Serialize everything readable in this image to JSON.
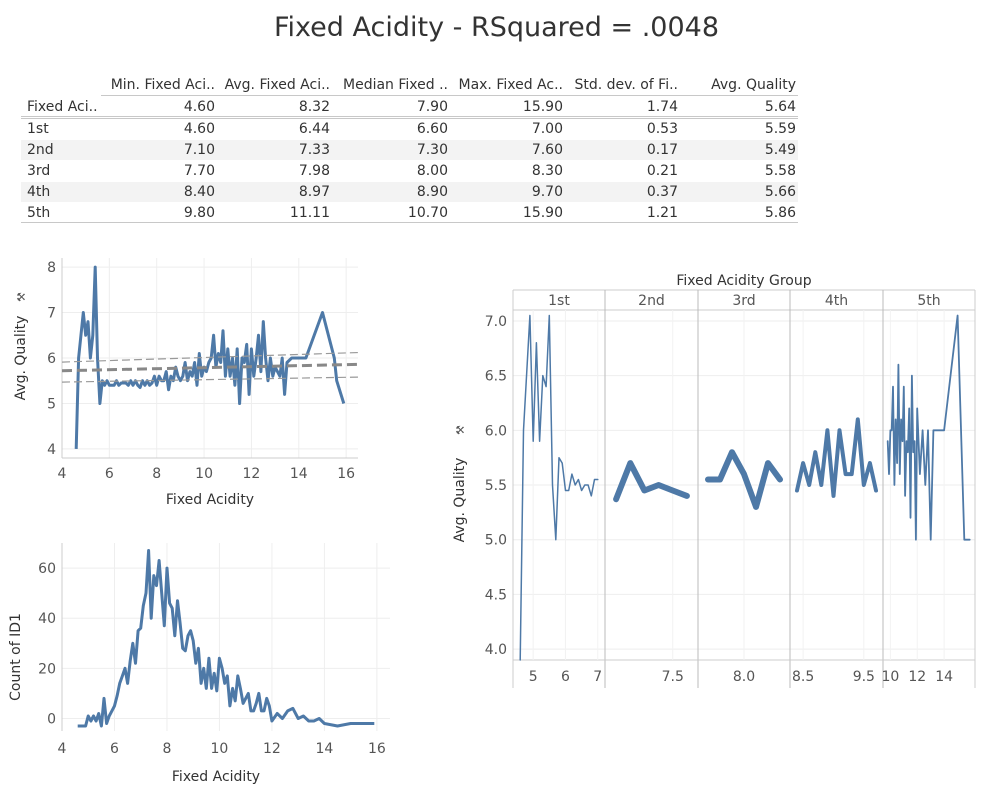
{
  "title": "Fixed Acidity  - RSquared = .0048",
  "table": {
    "columns": [
      "Min. Fixed Aci..",
      "Avg. Fixed Aci..",
      "Median Fixed ..",
      "Max. Fixed Ac..",
      "Std. dev. of Fi..",
      "Avg. Quality"
    ],
    "total_label": "Fixed Aci..",
    "total": [
      "4.60",
      "8.32",
      "7.90",
      "15.90",
      "1.74",
      "5.64"
    ],
    "rows": [
      {
        "label": "1st",
        "values": [
          "4.60",
          "6.44",
          "6.60",
          "7.00",
          "0.53",
          "5.59"
        ]
      },
      {
        "label": "2nd",
        "values": [
          "7.10",
          "7.33",
          "7.30",
          "7.60",
          "0.17",
          "5.49"
        ]
      },
      {
        "label": "3rd",
        "values": [
          "7.70",
          "7.98",
          "8.00",
          "8.30",
          "0.21",
          "5.58"
        ]
      },
      {
        "label": "4th",
        "values": [
          "8.40",
          "8.97",
          "8.90",
          "9.70",
          "0.37",
          "5.66"
        ]
      },
      {
        "label": "5th",
        "values": [
          "9.80",
          "11.11",
          "10.70",
          "15.90",
          "1.21",
          "5.86"
        ]
      }
    ]
  },
  "chart_data": [
    {
      "type": "line",
      "name": "quality-vs-acidity",
      "xlabel": "Fixed Acidity",
      "ylabel": "Avg. Quality",
      "xlim": [
        4,
        16.5
      ],
      "ylim": [
        3.8,
        8.2
      ],
      "xticks": [
        4,
        6,
        8,
        10,
        12,
        14,
        16
      ],
      "yticks": [
        4,
        5,
        6,
        7,
        8
      ],
      "trend": {
        "x": [
          4.6,
          15.9
        ],
        "y": [
          5.72,
          5.86
        ]
      },
      "conf_band": {
        "upper": [
          5.94,
          6.12
        ],
        "lower": [
          5.52,
          5.58
        ]
      },
      "color": "#4e79a7",
      "series": [
        {
          "x": [
            4.6,
            4.7,
            4.9,
            5.0,
            5.1,
            5.2,
            5.3,
            5.4,
            5.5,
            5.6,
            5.7,
            5.8,
            5.9,
            6.0,
            6.1,
            6.2,
            6.3,
            6.4,
            6.5,
            6.6,
            6.7,
            6.8,
            6.9,
            7.0,
            7.1,
            7.2,
            7.3,
            7.4,
            7.5,
            7.6,
            7.7,
            7.8,
            7.9,
            8.0,
            8.1,
            8.2,
            8.3,
            8.4,
            8.5,
            8.6,
            8.7,
            8.8,
            8.9,
            9.0,
            9.1,
            9.2,
            9.3,
            9.4,
            9.5,
            9.6,
            9.7,
            9.8,
            9.9,
            10.0,
            10.1,
            10.2,
            10.3,
            10.4,
            10.5,
            10.6,
            10.7,
            10.8,
            10.9,
            11.0,
            11.1,
            11.2,
            11.3,
            11.4,
            11.5,
            11.6,
            11.7,
            11.8,
            11.9,
            12.0,
            12.1,
            12.2,
            12.3,
            12.4,
            12.5,
            12.6,
            12.7,
            12.8,
            12.9,
            13.0,
            13.2,
            13.3,
            13.4,
            13.5,
            13.7,
            14.0,
            14.3,
            15.0,
            15.5,
            15.6,
            15.9
          ],
          "y": [
            4.0,
            6.0,
            7.0,
            6.5,
            6.8,
            6.0,
            6.5,
            8.0,
            6.0,
            5.0,
            5.5,
            5.4,
            5.5,
            5.4,
            5.4,
            5.4,
            5.5,
            5.4,
            5.45,
            5.45,
            5.45,
            5.4,
            5.5,
            5.4,
            5.5,
            5.4,
            5.35,
            5.5,
            5.4,
            5.5,
            5.4,
            5.45,
            5.6,
            5.4,
            5.6,
            5.5,
            5.5,
            5.7,
            5.3,
            5.6,
            5.5,
            5.8,
            5.6,
            5.5,
            5.6,
            5.9,
            5.5,
            5.7,
            5.6,
            5.9,
            5.4,
            6.1,
            5.6,
            5.8,
            5.7,
            5.9,
            6.0,
            6.5,
            5.8,
            6.1,
            5.9,
            6.6,
            5.6,
            6.2,
            5.6,
            6.0,
            5.4,
            6.2,
            5.0,
            6.0,
            5.9,
            6.3,
            5.2,
            6.2,
            5.6,
            6.0,
            6.5,
            5.7,
            6.8,
            6.0,
            5.5,
            6.0,
            5.6,
            5.8,
            5.6,
            6.0,
            5.2,
            5.9,
            6.0,
            6.0,
            6.0,
            7.0,
            6.0,
            5.5,
            5.0
          ]
        }
      ]
    },
    {
      "type": "line",
      "name": "count-vs-acidity",
      "xlabel": "Fixed Acidity",
      "ylabel": "Count of ID1",
      "xlim": [
        4,
        16.5
      ],
      "ylim": [
        -5,
        70
      ],
      "xticks": [
        4,
        6,
        8,
        10,
        12,
        14,
        16
      ],
      "yticks": [
        0,
        20,
        40,
        60
      ],
      "color": "#4e79a7",
      "series": [
        {
          "x": [
            4.6,
            4.7,
            4.9,
            5.0,
            5.1,
            5.2,
            5.3,
            5.4,
            5.5,
            5.6,
            5.7,
            5.8,
            5.9,
            6.0,
            6.1,
            6.2,
            6.3,
            6.4,
            6.5,
            6.6,
            6.7,
            6.8,
            6.9,
            7.0,
            7.1,
            7.2,
            7.3,
            7.4,
            7.5,
            7.6,
            7.7,
            7.8,
            7.9,
            8.0,
            8.1,
            8.2,
            8.3,
            8.4,
            8.5,
            8.6,
            8.7,
            8.8,
            8.9,
            9.0,
            9.1,
            9.2,
            9.3,
            9.4,
            9.5,
            9.6,
            9.7,
            9.8,
            9.9,
            10.0,
            10.1,
            10.2,
            10.3,
            10.4,
            10.5,
            10.6,
            10.7,
            10.8,
            10.9,
            11.0,
            11.1,
            11.2,
            11.3,
            11.4,
            11.5,
            11.6,
            11.7,
            11.8,
            11.9,
            12.0,
            12.2,
            12.4,
            12.6,
            12.8,
            13.0,
            13.2,
            13.4,
            13.6,
            13.8,
            14.0,
            14.5,
            15.0,
            15.5,
            15.9
          ],
          "y": [
            -3,
            -3,
            -3,
            1,
            -1,
            1,
            -1,
            2,
            -3,
            8,
            -2,
            1,
            3,
            5,
            9,
            14,
            17,
            20,
            14,
            23,
            30,
            22,
            35,
            36,
            45,
            50,
            67,
            40,
            57,
            53,
            63,
            50,
            37,
            60,
            46,
            44,
            33,
            47,
            38,
            28,
            27,
            33,
            35,
            31,
            22,
            28,
            14,
            20,
            12,
            24,
            12,
            18,
            11,
            24,
            20,
            14,
            17,
            5,
            12,
            7,
            17,
            12,
            6,
            8,
            10,
            3,
            3,
            6,
            10,
            3,
            3,
            8,
            5,
            -1,
            2,
            0,
            3,
            4,
            0,
            1,
            -1,
            -1,
            0,
            -2,
            -3,
            -2,
            -2,
            -2
          ]
        }
      ]
    },
    {
      "type": "line",
      "name": "quality-by-group",
      "title": "Fixed Acidity Group",
      "ylabel": "Avg. Quality",
      "ylim": [
        3.9,
        7.1
      ],
      "yticks": [
        4.0,
        4.5,
        5.0,
        5.5,
        6.0,
        6.5,
        7.0
      ],
      "color": "#4e79a7",
      "panels": [
        {
          "label": "1st",
          "xlim": [
            4.5,
            7.1
          ],
          "xticks": [
            5,
            6,
            7
          ],
          "x_tick_labels": [
            "5",
            "6",
            "7"
          ],
          "width": 1.5,
          "x": [
            4.6,
            4.7,
            4.9,
            5.0,
            5.1,
            5.2,
            5.3,
            5.4,
            5.5,
            5.6,
            5.7,
            5.8,
            5.9,
            6.0,
            6.1,
            6.2,
            6.3,
            6.4,
            6.5,
            6.6,
            6.7,
            6.8,
            6.9,
            7.0
          ],
          "y": [
            3.9,
            6.0,
            7.05,
            5.9,
            6.8,
            5.9,
            6.5,
            6.4,
            7.05,
            5.5,
            5.0,
            5.75,
            5.7,
            5.45,
            5.45,
            5.6,
            5.5,
            5.55,
            5.45,
            5.5,
            5.5,
            5.4,
            5.55,
            5.55
          ]
        },
        {
          "label": "2nd",
          "xlim": [
            7.05,
            7.65
          ],
          "xticks": [
            7.5
          ],
          "x_tick_labels": [
            "7.5"
          ],
          "width": 6,
          "x": [
            7.1,
            7.2,
            7.3,
            7.4,
            7.5,
            7.6
          ],
          "y": [
            5.37,
            5.7,
            5.45,
            5.5,
            5.45,
            5.4
          ]
        },
        {
          "label": "3rd",
          "xlim": [
            7.65,
            8.35
          ],
          "xticks": [
            8.0
          ],
          "x_tick_labels": [
            "8.0"
          ],
          "width": 6,
          "x": [
            7.7,
            7.8,
            7.9,
            8.0,
            8.1,
            8.2,
            8.3
          ],
          "y": [
            5.55,
            5.55,
            5.8,
            5.6,
            5.3,
            5.7,
            5.55
          ]
        },
        {
          "label": "4th",
          "xlim": [
            8.35,
            9.75
          ],
          "xticks": [
            8.5,
            9.5
          ],
          "x_tick_labels": [
            "8.5",
            "9.5"
          ],
          "width": 4,
          "x": [
            8.4,
            8.5,
            8.6,
            8.7,
            8.8,
            8.9,
            9.0,
            9.1,
            9.2,
            9.3,
            9.4,
            9.5,
            9.6,
            9.7
          ],
          "y": [
            5.45,
            5.7,
            5.5,
            5.8,
            5.5,
            6.0,
            5.4,
            6.0,
            5.6,
            5.6,
            6.1,
            5.5,
            5.7,
            5.45
          ]
        },
        {
          "label": "5th",
          "xlim": [
            9.75,
            16.0
          ],
          "xticks": [
            10,
            12,
            14
          ],
          "x_tick_labels": [
            "10",
            "12",
            "14"
          ],
          "width": 1.8,
          "x": [
            9.8,
            9.9,
            10.0,
            10.1,
            10.2,
            10.3,
            10.4,
            10.5,
            10.6,
            10.7,
            10.8,
            10.9,
            11.0,
            11.1,
            11.2,
            11.3,
            11.4,
            11.5,
            11.6,
            11.7,
            11.8,
            11.9,
            12.0,
            12.2,
            12.4,
            12.6,
            12.8,
            13.0,
            13.2,
            13.5,
            14.0,
            15.0,
            15.5,
            15.9
          ],
          "y": [
            5.9,
            5.6,
            6.0,
            6.0,
            6.4,
            5.5,
            6.1,
            5.7,
            6.6,
            5.6,
            6.1,
            5.9,
            6.4,
            5.4,
            5.9,
            5.8,
            6.2,
            5.2,
            6.5,
            5.8,
            5.9,
            5.0,
            6.2,
            5.6,
            6.0,
            5.5,
            6.0,
            5.0,
            6.0,
            6.0,
            6.0,
            7.05,
            5.0,
            5.0
          ]
        }
      ]
    }
  ]
}
